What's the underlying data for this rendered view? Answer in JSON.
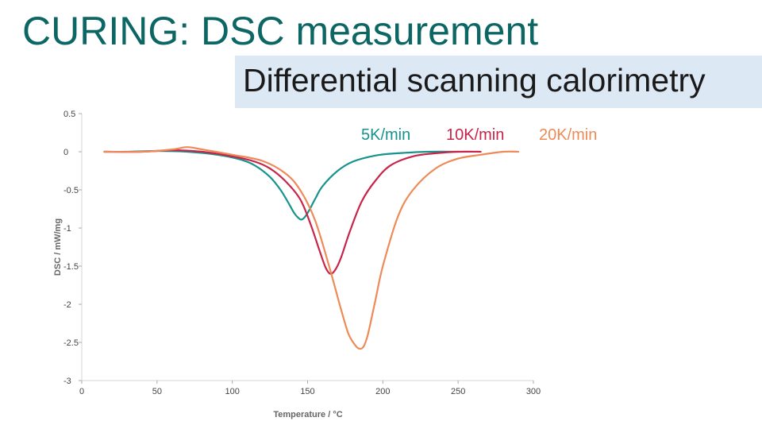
{
  "slide": {
    "title": "CURING: DSC measurement",
    "subtitle": "Differential scanning calorimetry"
  },
  "colors": {
    "title": "#0c6663",
    "subtitle_band": "#dde8f5",
    "series_5": "#16938c",
    "series_10": "#c8244a",
    "series_20": "#ee8a57"
  },
  "chart_data": {
    "type": "line",
    "title": "",
    "xlabel": "Temperature / °C",
    "ylabel": "DSC / mW/mg",
    "xlim": [
      0,
      300
    ],
    "ylim": [
      -3,
      0.5
    ],
    "x_ticks": [
      0,
      50,
      100,
      150,
      200,
      250,
      300
    ],
    "x_tick_labels": [
      "0",
      "50",
      "100",
      "150",
      "200",
      "250",
      "300"
    ],
    "y_ticks": [
      0.5,
      0,
      -0.5,
      -1,
      -1.5,
      -2,
      -2.5,
      -3
    ],
    "y_tick_labels": [
      "0.5",
      "0",
      "-0.5",
      "-1",
      "-1.5",
      "-2",
      "-2.5",
      "-3"
    ],
    "grid": false,
    "legend_position": "top",
    "series": [
      {
        "name": "5K/min",
        "color": "#16938c",
        "x": [
          15,
          30,
          50,
          70,
          90,
          105,
          115,
          125,
          132,
          137,
          141,
          144,
          146,
          148,
          151,
          155,
          160,
          170,
          180,
          195,
          210,
          230,
          250
        ],
        "y": [
          0,
          0,
          0.01,
          0,
          -0.04,
          -0.1,
          -0.18,
          -0.33,
          -0.5,
          -0.66,
          -0.8,
          -0.87,
          -0.89,
          -0.86,
          -0.77,
          -0.62,
          -0.45,
          -0.25,
          -0.13,
          -0.05,
          -0.02,
          0,
          0
        ]
      },
      {
        "name": "10K/min",
        "color": "#c8244a",
        "x": [
          15,
          40,
          60,
          80,
          100,
          115,
          125,
          135,
          145,
          152,
          158,
          162,
          165,
          168,
          172,
          178,
          186,
          195,
          205,
          220,
          235,
          250,
          265
        ],
        "y": [
          0,
          0,
          0.02,
          0,
          -0.06,
          -0.13,
          -0.22,
          -0.38,
          -0.62,
          -0.95,
          -1.3,
          -1.52,
          -1.6,
          -1.56,
          -1.4,
          -1.05,
          -0.65,
          -0.38,
          -0.18,
          -0.06,
          -0.02,
          0,
          0
        ]
      },
      {
        "name": "20K/min",
        "color": "#ee8a57",
        "x": [
          15,
          40,
          60,
          70,
          80,
          100,
          120,
          135,
          145,
          155,
          165,
          172,
          177,
          181,
          184,
          187,
          190,
          195,
          200,
          210,
          220,
          235,
          250,
          265,
          280,
          290
        ],
        "y": [
          0,
          0,
          0.03,
          0.06,
          0.03,
          -0.04,
          -0.12,
          -0.28,
          -0.5,
          -0.9,
          -1.55,
          -2.05,
          -2.38,
          -2.52,
          -2.58,
          -2.56,
          -2.4,
          -1.95,
          -1.5,
          -0.85,
          -0.5,
          -0.22,
          -0.09,
          -0.04,
          0,
          0
        ]
      }
    ]
  }
}
